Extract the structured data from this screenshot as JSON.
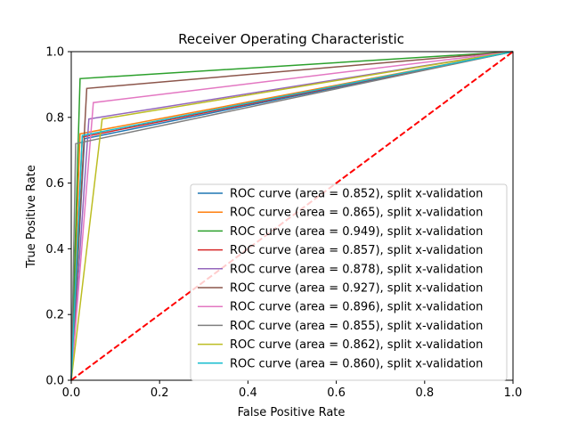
{
  "chart_data": {
    "type": "line",
    "title": "Receiver Operating Characteristic",
    "xlabel": "False Positive Rate",
    "ylabel": "True Positive Rate",
    "xlim": [
      0,
      1
    ],
    "ylim": [
      0,
      1
    ],
    "xticks": [
      0,
      0.2,
      0.4,
      0.6,
      0.8,
      1.0
    ],
    "xtick_labels": [
      "0.0",
      "0.2",
      "0.4",
      "0.6",
      "0.8",
      "1.0"
    ],
    "yticks": [
      0,
      0.2,
      0.4,
      0.6,
      0.8,
      1.0
    ],
    "ytick_labels": [
      "0.0",
      "0.2",
      "0.4",
      "0.6",
      "0.8",
      "1.0"
    ],
    "grid": false,
    "legend_position": "lower-right",
    "series": [
      {
        "name": "ROC curve (area = 0.852), split x-validation",
        "color": "#1f77b4",
        "x": [
          0,
          0.03,
          1
        ],
        "y": [
          0,
          0.735,
          1
        ]
      },
      {
        "name": "ROC curve (area = 0.865), split x-validation",
        "color": "#ff7f0e",
        "x": [
          0,
          0.02,
          1
        ],
        "y": [
          0,
          0.75,
          1
        ]
      },
      {
        "name": "ROC curve (area = 0.949), split x-validation",
        "color": "#2ca02c",
        "x": [
          0,
          0.02,
          1
        ],
        "y": [
          0,
          0.918,
          1
        ]
      },
      {
        "name": "ROC curve (area = 0.857), split x-validation",
        "color": "#d62728",
        "x": [
          0,
          0.025,
          1
        ],
        "y": [
          0,
          0.74,
          1
        ]
      },
      {
        "name": "ROC curve (area = 0.878), split x-validation",
        "color": "#9467bd",
        "x": [
          0,
          0.04,
          1
        ],
        "y": [
          0,
          0.795,
          1
        ]
      },
      {
        "name": "ROC curve (area = 0.927), split x-validation",
        "color": "#8c564b",
        "x": [
          0,
          0.035,
          1
        ],
        "y": [
          0,
          0.888,
          1
        ]
      },
      {
        "name": "ROC curve (area = 0.896), split x-validation",
        "color": "#e377c2",
        "x": [
          0,
          0.05,
          1
        ],
        "y": [
          0,
          0.845,
          1
        ]
      },
      {
        "name": "ROC curve (area = 0.855), split x-validation",
        "color": "#7f7f7f",
        "x": [
          0,
          0.01,
          1
        ],
        "y": [
          0,
          0.72,
          1
        ]
      },
      {
        "name": "ROC curve (area = 0.862), split x-validation",
        "color": "#bcbd22",
        "x": [
          0,
          0.07,
          1
        ],
        "y": [
          0,
          0.795,
          1
        ]
      },
      {
        "name": "ROC curve (area = 0.860), split x-validation",
        "color": "#17becf",
        "x": [
          0,
          0.025,
          1
        ],
        "y": [
          0,
          0.745,
          1
        ]
      }
    ],
    "reference_line": {
      "color": "#ff0000",
      "x": [
        0,
        1
      ],
      "y": [
        0,
        1
      ],
      "dashed": true
    }
  }
}
